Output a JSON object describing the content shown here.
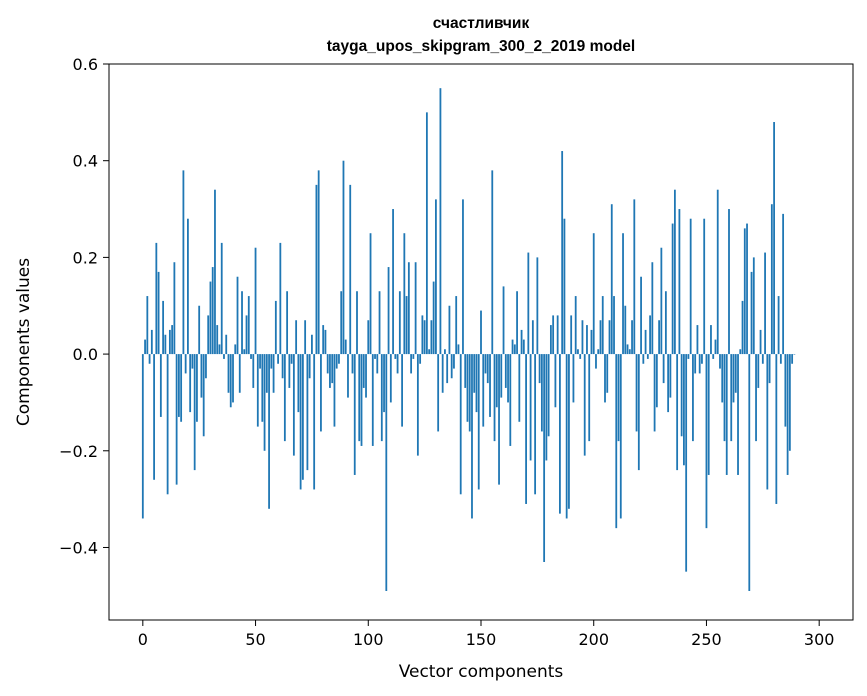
{
  "chart_data": {
    "type": "bar",
    "title_line1": "счастливчик",
    "title_line2": "tayga_upos_skipgram_300_2_2019 model",
    "xlabel": "Vector components",
    "ylabel": "Components values",
    "xlim": [
      -15,
      315
    ],
    "ylim": [
      -0.55,
      0.6
    ],
    "xticks": [
      0,
      50,
      100,
      150,
      200,
      250,
      300
    ],
    "xtick_labels": [
      "0",
      "50",
      "100",
      "150",
      "200",
      "250",
      "300"
    ],
    "yticks": [
      -0.4,
      -0.2,
      0.0,
      0.2,
      0.4,
      0.6
    ],
    "ytick_labels": [
      "−0.4",
      "−0.2",
      "0.0",
      "0.2",
      "0.4",
      "0.6"
    ],
    "bar_color": "#1f77b4",
    "values": [
      -0.34,
      0.03,
      0.12,
      -0.02,
      0.05,
      -0.26,
      0.23,
      0.17,
      -0.13,
      0.11,
      0.04,
      -0.29,
      0.05,
      0.06,
      0.19,
      -0.27,
      -0.13,
      -0.14,
      0.38,
      -0.04,
      0.28,
      -0.12,
      -0.03,
      -0.24,
      -0.14,
      0.1,
      -0.09,
      -0.17,
      -0.05,
      0.08,
      0.15,
      0.18,
      0.34,
      0.06,
      0.02,
      0.23,
      -0.01,
      0.04,
      -0.08,
      -0.11,
      -0.1,
      0.02,
      0.16,
      -0.08,
      0.13,
      0.01,
      0.08,
      0.12,
      -0.01,
      -0.07,
      0.22,
      -0.15,
      -0.03,
      -0.14,
      -0.2,
      -0.08,
      -0.32,
      -0.03,
      -0.08,
      0.11,
      -0.02,
      0.23,
      -0.05,
      -0.18,
      0.13,
      -0.07,
      -0.02,
      -0.21,
      0.07,
      -0.12,
      -0.28,
      -0.26,
      0.07,
      -0.24,
      -0.05,
      0.04,
      -0.28,
      0.35,
      0.38,
      -0.16,
      0.06,
      0.05,
      -0.04,
      -0.07,
      -0.06,
      -0.15,
      -0.03,
      -0.02,
      0.13,
      0.4,
      0.03,
      -0.09,
      0.35,
      -0.04,
      -0.25,
      0.13,
      -0.18,
      -0.19,
      -0.07,
      -0.09,
      0.07,
      0.25,
      -0.19,
      -0.01,
      -0.04,
      0.13,
      -0.18,
      -0.12,
      -0.49,
      0.18,
      -0.1,
      0.3,
      -0.01,
      -0.04,
      0.13,
      -0.15,
      0.25,
      0.12,
      0.19,
      -0.04,
      -0.01,
      0.19,
      -0.21,
      -0.02,
      0.08,
      0.07,
      0.5,
      0.01,
      0.07,
      0.15,
      0.32,
      -0.16,
      0.55,
      -0.08,
      0.01,
      -0.06,
      0.1,
      -0.05,
      -0.03,
      0.12,
      0.02,
      -0.29,
      0.32,
      -0.07,
      -0.14,
      -0.16,
      -0.34,
      -0.08,
      -0.12,
      -0.28,
      0.09,
      -0.15,
      -0.04,
      -0.06,
      -0.13,
      0.38,
      -0.18,
      -0.11,
      -0.27,
      -0.09,
      0.14,
      -0.07,
      -0.1,
      -0.19,
      0.03,
      0.02,
      0.13,
      -0.14,
      0.05,
      0.03,
      -0.31,
      0.21,
      -0.22,
      0.07,
      -0.29,
      0.2,
      -0.06,
      -0.16,
      -0.43,
      -0.22,
      -0.17,
      0.06,
      0.08,
      -0.11,
      0.08,
      -0.33,
      0.42,
      0.28,
      -0.34,
      -0.32,
      0.08,
      -0.1,
      0.12,
      0.01,
      -0.01,
      0.07,
      -0.21,
      0.06,
      -0.18,
      0.05,
      0.25,
      -0.03,
      0.01,
      0.07,
      0.12,
      -0.1,
      -0.08,
      0.07,
      0.31,
      0.12,
      -0.36,
      -0.18,
      -0.34,
      0.25,
      0.1,
      0.02,
      0.01,
      0.07,
      0.32,
      -0.16,
      -0.24,
      0.16,
      -0.02,
      0.05,
      -0.01,
      0.08,
      0.19,
      -0.16,
      -0.11,
      0.07,
      0.22,
      -0.06,
      0.13,
      -0.12,
      -0.09,
      0.27,
      0.34,
      -0.24,
      0.3,
      -0.17,
      -0.23,
      -0.45,
      -0.01,
      0.28,
      -0.18,
      -0.04,
      0.06,
      -0.04,
      -0.02,
      0.28,
      -0.36,
      -0.25,
      0.06,
      -0.01,
      0.03,
      0.34,
      -0.03,
      -0.1,
      -0.18,
      -0.25,
      0.3,
      -0.18,
      -0.1,
      -0.08,
      -0.25,
      0.01,
      0.11,
      0.26,
      0.27,
      -0.49,
      0.17,
      0.2,
      -0.18,
      -0.07,
      0.05,
      -0.02,
      0.21,
      -0.28,
      -0.06,
      0.31,
      0.48,
      -0.31,
      0.12,
      -0.02,
      0.29,
      -0.15,
      -0.25,
      -0.2,
      -0.02,
      0.0
    ]
  }
}
